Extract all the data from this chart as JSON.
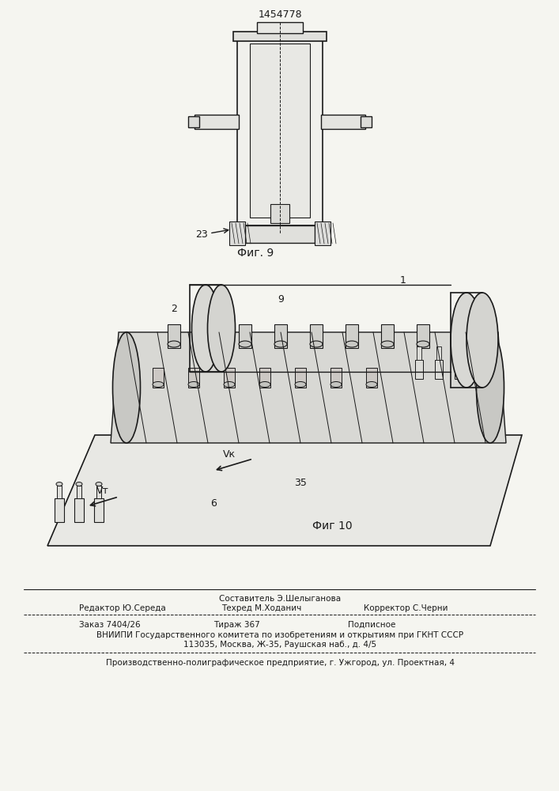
{
  "patent_number": "1454778",
  "fig9_label": "Фиг. 9",
  "fig10_label": "Фиг 10",
  "label_23": "23",
  "label_1": "1",
  "label_2": "2",
  "label_9": "9",
  "label_6": "6",
  "label_35": "35",
  "label_vk": "Vк",
  "label_vt": "Vт",
  "footer_line1": "Составитель Э.Шелыганова",
  "footer_line2_left": "Редактор Ю.Середа",
  "footer_line2_mid": "Техред М.Ходанич",
  "footer_line2_right": "Корректор С.Черни",
  "footer_line3_left": "Заказ 7404/26",
  "footer_line3_mid": "Тираж 367",
  "footer_line3_right": "Подписное",
  "footer_line4": "ВНИИПИ Государственного комитета по изобретениям и открытиям при ГКНТ СССР",
  "footer_line5": "113035, Москва, Ж-35, Раушская наб., д. 4/5",
  "footer_line6": "Производственно-полиграфическое предприятие, г. Ужгород, ул. Проектная, 4",
  "bg_color": "#f5f5f0",
  "line_color": "#1a1a1a",
  "text_color": "#1a1a1a"
}
